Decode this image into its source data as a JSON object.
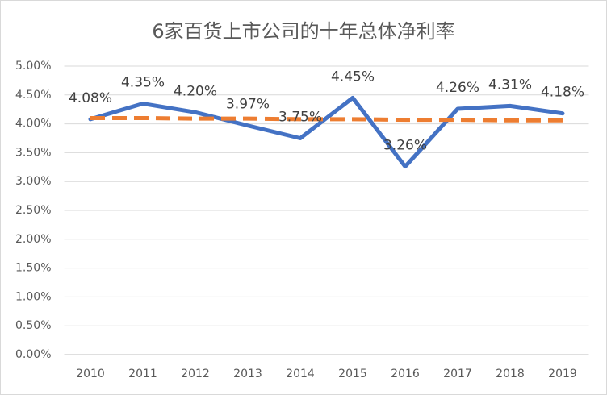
{
  "chart_data": {
    "type": "line",
    "title": "6家百货上市公司的十年总体净利率",
    "categories": [
      "2010",
      "2011",
      "2012",
      "2013",
      "2014",
      "2015",
      "2016",
      "2017",
      "2018",
      "2019"
    ],
    "series": [
      {
        "color": "#4472c4",
        "values": [
          4.08,
          4.35,
          4.2,
          3.97,
          3.75,
          4.45,
          3.26,
          4.26,
          4.31,
          4.18
        ],
        "value_labels": [
          "4.08%",
          "4.35%",
          "4.20%",
          "3.97%",
          "3.75%",
          "4.45%",
          "3.26%",
          "4.26%",
          "4.31%",
          "4.18%"
        ]
      },
      {
        "color": "#ed7d31",
        "dashed": true,
        "values": [
          4.1,
          4.1,
          4.09,
          4.09,
          4.08,
          4.08,
          4.07,
          4.07,
          4.06,
          4.06
        ]
      }
    ],
    "ylim": [
      0,
      5
    ],
    "yticks": [
      {
        "value": 0,
        "label": "0.00%"
      },
      {
        "value": 0.5,
        "label": "0.50%"
      },
      {
        "value": 1,
        "label": "1.00%"
      },
      {
        "value": 1.5,
        "label": "1.50%"
      },
      {
        "value": 2,
        "label": "2.00%"
      },
      {
        "value": 2.5,
        "label": "2.50%"
      },
      {
        "value": 3,
        "label": "3.00%"
      },
      {
        "value": 3.5,
        "label": "3.50%"
      },
      {
        "value": 4,
        "label": "4.00%"
      },
      {
        "value": 4.5,
        "label": "4.50%"
      },
      {
        "value": 5,
        "label": "5.00%"
      }
    ],
    "grid": true
  }
}
